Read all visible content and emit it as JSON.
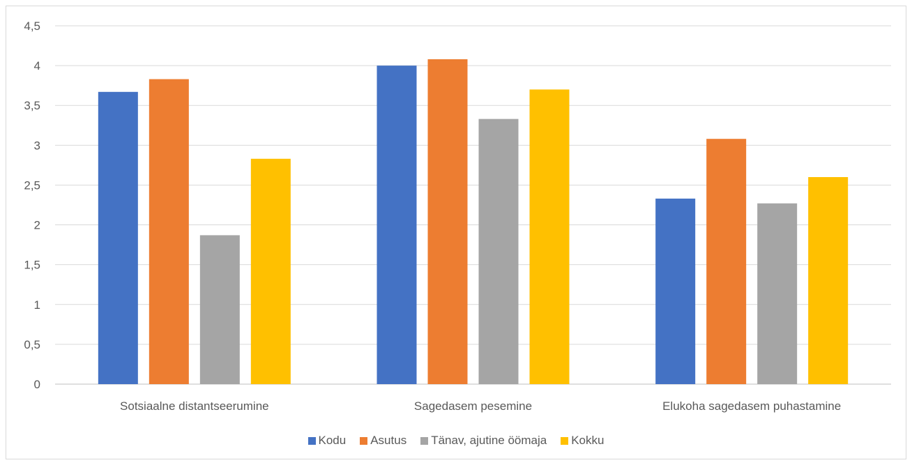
{
  "chart_data": {
    "type": "bar",
    "categories": [
      "Sotsiaalne distantseerumine",
      "Sagedasem pesemine",
      "Elukoha sagedasem puhastamine"
    ],
    "series": [
      {
        "name": "Kodu",
        "color": "#4472c4",
        "values": [
          3.67,
          4.0,
          2.33
        ]
      },
      {
        "name": "Asutus",
        "color": "#ed7d31",
        "values": [
          3.83,
          4.08,
          3.08
        ]
      },
      {
        "name": "Tänav, ajutine öömaja",
        "color": "#a5a5a5",
        "values": [
          1.87,
          3.33,
          2.27
        ]
      },
      {
        "name": "Kokku",
        "color": "#ffc000",
        "values": [
          2.83,
          3.7,
          2.6
        ]
      }
    ],
    "ylim": [
      0,
      4.5
    ],
    "yticks": [
      "0",
      "0,5",
      "1",
      "1,5",
      "2",
      "2,5",
      "3",
      "3,5",
      "4",
      "4,5"
    ],
    "grid": true,
    "legend_position": "bottom"
  }
}
